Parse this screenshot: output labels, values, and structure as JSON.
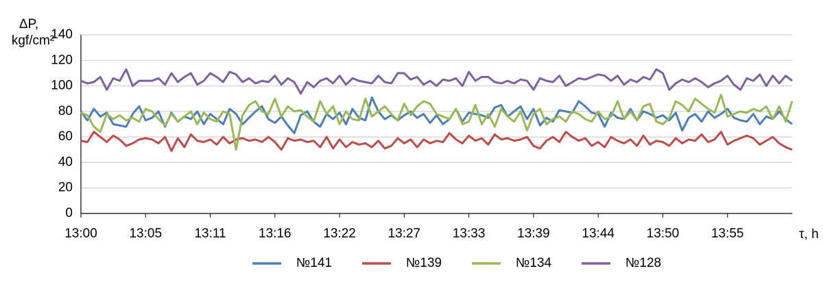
{
  "chart_data": {
    "type": "line",
    "y_label_1": "ΔP,",
    "y_label_2": "kgf/cm²",
    "x_label": "τ,  h",
    "categories": [
      "13:00",
      null,
      null,
      null,
      null,
      null,
      null,
      null,
      null,
      null,
      "13:05",
      null,
      null,
      null,
      null,
      null,
      null,
      null,
      null,
      null,
      "13:11",
      null,
      null,
      null,
      null,
      null,
      null,
      null,
      null,
      null,
      "13:16",
      null,
      null,
      null,
      null,
      null,
      null,
      null,
      null,
      null,
      "13:22",
      null,
      null,
      null,
      null,
      null,
      null,
      null,
      null,
      null,
      "13:27",
      null,
      null,
      null,
      null,
      null,
      null,
      null,
      null,
      null,
      "13:33",
      null,
      null,
      null,
      null,
      null,
      null,
      null,
      null,
      null,
      "13:39",
      null,
      null,
      null,
      null,
      null,
      null,
      null,
      null,
      null,
      "13:44",
      null,
      null,
      null,
      null,
      null,
      null,
      null,
      null,
      null,
      "13:50",
      null,
      null,
      null,
      null,
      null,
      null,
      null,
      null,
      null,
      "13:55",
      null,
      null,
      null,
      null,
      null,
      null,
      null,
      null,
      null,
      null
    ],
    "ylim": [
      0,
      140
    ],
    "yticks": [
      0,
      20,
      40,
      60,
      80,
      100,
      120,
      140
    ],
    "grid": true,
    "series": [
      {
        "name": "№141",
        "color": "#4a7ebb",
        "values": [
          80,
          73,
          82,
          76,
          79,
          70,
          69,
          68,
          78,
          84,
          73,
          75,
          80,
          68,
          79,
          72,
          76,
          74,
          80,
          70,
          78,
          74,
          70,
          82,
          78,
          70,
          75,
          80,
          84,
          74,
          71,
          76,
          69,
          63,
          77,
          80,
          72,
          68,
          78,
          74,
          79,
          70,
          82,
          75,
          73,
          91,
          80,
          74,
          77,
          73,
          77,
          80,
          75,
          78,
          71,
          77,
          70,
          74,
          82,
          72,
          79,
          78,
          77,
          75,
          83,
          85,
          76,
          80,
          84,
          74,
          82,
          69,
          75,
          72,
          81,
          80,
          79,
          88,
          84,
          79,
          78,
          68,
          79,
          75,
          74,
          82,
          73,
          80,
          78,
          75,
          77,
          73,
          79,
          65,
          75,
          78,
          72,
          80,
          75,
          78,
          82,
          75,
          73,
          72,
          78,
          70,
          76,
          74,
          80,
          74,
          70
        ]
      },
      {
        "name": "№139",
        "color": "#be4b48",
        "values": [
          57,
          56,
          64,
          60,
          56,
          61,
          58,
          53,
          55,
          58,
          59,
          58,
          55,
          60,
          49,
          59,
          52,
          62,
          57,
          56,
          58,
          54,
          60,
          55,
          58,
          59,
          57,
          58,
          56,
          60,
          56,
          50,
          59,
          57,
          58,
          56,
          57,
          52,
          60,
          51,
          58,
          52,
          56,
          54,
          55,
          52,
          57,
          51,
          53,
          59,
          55,
          58,
          52,
          58,
          55,
          57,
          56,
          63,
          58,
          55,
          61,
          57,
          59,
          54,
          62,
          58,
          59,
          57,
          58,
          60,
          53,
          51,
          57,
          60,
          56,
          64,
          60,
          57,
          59,
          53,
          56,
          52,
          60,
          57,
          55,
          58,
          53,
          61,
          54,
          57,
          56,
          53,
          59,
          55,
          58,
          57,
          62,
          56,
          58,
          64,
          54,
          57,
          59,
          61,
          59,
          54,
          57,
          60,
          55,
          52,
          50
        ]
      },
      {
        "name": "№134",
        "color": "#98b954",
        "values": [
          79,
          77,
          68,
          64,
          78,
          74,
          77,
          73,
          75,
          72,
          82,
          80,
          74,
          69,
          78,
          72,
          76,
          80,
          70,
          79,
          74,
          72,
          80,
          78,
          50,
          77,
          85,
          88,
          80,
          78,
          90,
          76,
          84,
          80,
          81,
          76,
          72,
          88,
          78,
          84,
          70,
          80,
          74,
          73,
          90,
          76,
          80,
          84,
          78,
          73,
          86,
          77,
          84,
          88,
          86,
          78,
          76,
          74,
          82,
          70,
          72,
          85,
          70,
          78,
          68,
          82,
          76,
          72,
          80,
          65,
          78,
          82,
          70,
          74,
          76,
          72,
          80,
          78,
          74,
          72,
          80,
          74,
          76,
          88,
          74,
          80,
          73,
          84,
          86,
          72,
          70,
          75,
          88,
          85,
          80,
          90,
          86,
          82,
          79,
          93,
          76,
          78,
          80,
          79,
          82,
          80,
          84,
          74,
          84,
          72,
          88
        ]
      },
      {
        "name": "№128",
        "color": "#7d60a0",
        "values": [
          104,
          102,
          103,
          107,
          97,
          106,
          104,
          113,
          100,
          104,
          104,
          104,
          106,
          101,
          110,
          103,
          107,
          110,
          101,
          104,
          110,
          107,
          103,
          111,
          109,
          103,
          106,
          102,
          104,
          103,
          108,
          101,
          106,
          103,
          94,
          103,
          99,
          104,
          106,
          102,
          108,
          101,
          106,
          104,
          103,
          102,
          108,
          103,
          102,
          110,
          110,
          105,
          107,
          101,
          104,
          100,
          105,
          104,
          106,
          100,
          111,
          104,
          107,
          107,
          103,
          102,
          104,
          102,
          105,
          104,
          97,
          106,
          104,
          103,
          108,
          100,
          103,
          106,
          105,
          107,
          109,
          108,
          104,
          108,
          101,
          105,
          103,
          107,
          105,
          113,
          110,
          97,
          102,
          105,
          103,
          106,
          103,
          99,
          102,
          104,
          108,
          101,
          97,
          106,
          104,
          109,
          100,
          108,
          102,
          108,
          104
        ]
      }
    ]
  }
}
